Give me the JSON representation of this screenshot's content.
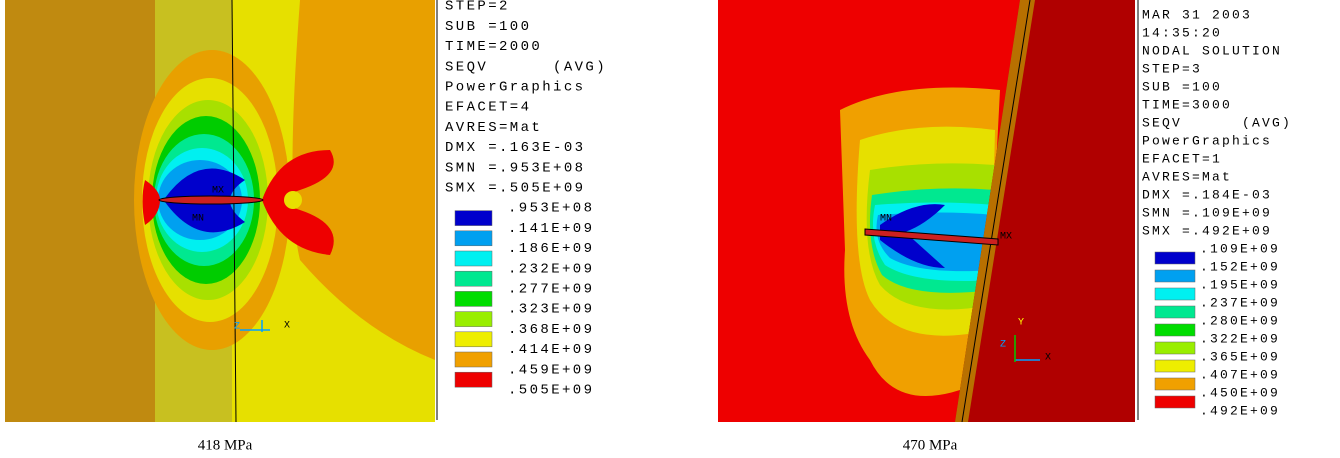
{
  "panels": [
    {
      "legend_header": [
        "STEP=2",
        "SUB =100",
        "TIME=2000",
        "SEQV      (AVG)",
        "PowerGraphics",
        "EFACET=4",
        "AVRES=Mat",
        "DMX =.163E-03",
        "SMN =.953E+08",
        "SMX =.505E+09"
      ],
      "legend_levels": [
        ".953E+08",
        ".141E+09",
        ".186E+09",
        ".232E+09",
        ".277E+09",
        ".323E+09",
        ".368E+09",
        ".414E+09",
        ".459E+09",
        ".505E+09"
      ],
      "plot_labels": [
        "MX",
        "MN",
        "Z",
        "X"
      ],
      "caption": "418 MPa"
    },
    {
      "legend_header": [
        "MAR 31 2003",
        "14:35:20",
        "NODAL SOLUTION",
        "STEP=3",
        "SUB =100",
        "TIME=3000",
        "SEQV      (AVG)",
        "PowerGraphics",
        "EFACET=1",
        "AVRES=Mat",
        "DMX =.184E-03",
        "SMN =.109E+09",
        "SMX =.492E+09"
      ],
      "legend_levels": [
        ".109E+09",
        ".152E+09",
        ".195E+09",
        ".237E+09",
        ".280E+09",
        ".322E+09",
        ".365E+09",
        ".407E+09",
        ".450E+09",
        ".492E+09"
      ],
      "plot_labels": [
        "MN",
        "MX",
        "Z",
        "Y",
        "X"
      ],
      "caption": "470 MPa"
    }
  ]
}
